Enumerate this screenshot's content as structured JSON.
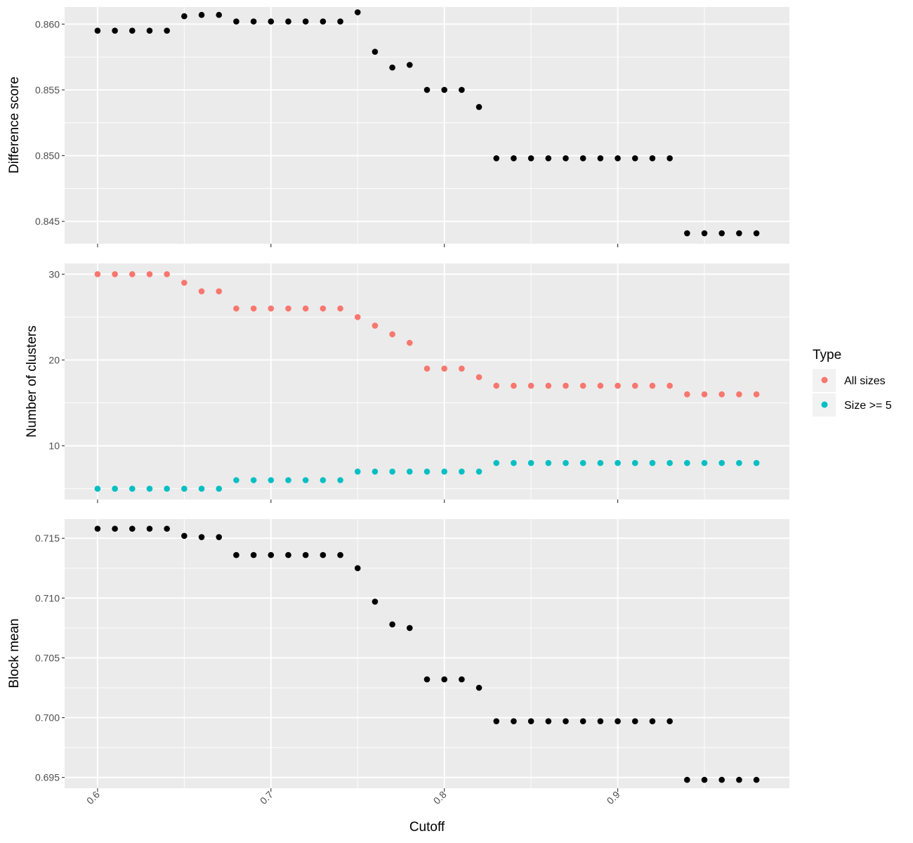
{
  "figure": {
    "xlabel": "Cutoff",
    "legend": {
      "title": "Type",
      "position": "right",
      "entries": [
        {
          "label": "All sizes",
          "color": "#F8766D"
        },
        {
          "label": "Size >= 5",
          "color": "#00BFC4"
        }
      ]
    }
  },
  "chart_data": [
    {
      "type": "scatter",
      "ylabel": "Difference score",
      "xlim": [
        0.581,
        0.999
      ],
      "ylim": [
        0.8433,
        0.8613
      ],
      "x_ticks": [
        0.6,
        0.7,
        0.8,
        0.9
      ],
      "x_tick_labels_shown": false,
      "y_ticks": [
        0.845,
        0.85,
        0.855,
        0.86
      ],
      "y_tick_labels": [
        "0.845",
        "0.850",
        "0.855",
        "0.860"
      ],
      "grid": true,
      "series": [
        {
          "color": "#000000",
          "x": [
            0.6,
            0.61,
            0.62,
            0.63,
            0.64,
            0.65,
            0.66,
            0.67,
            0.68,
            0.69,
            0.7,
            0.71,
            0.72,
            0.73,
            0.74,
            0.75,
            0.76,
            0.77,
            0.78,
            0.79,
            0.8,
            0.81,
            0.82,
            0.83,
            0.84,
            0.85,
            0.86,
            0.87,
            0.88,
            0.89,
            0.9,
            0.91,
            0.92,
            0.93,
            0.94,
            0.95,
            0.96,
            0.97,
            0.98
          ],
          "y": [
            0.8595,
            0.8595,
            0.8595,
            0.8595,
            0.8595,
            0.8606,
            0.8607,
            0.8607,
            0.8602,
            0.8602,
            0.8602,
            0.8602,
            0.8602,
            0.8602,
            0.8602,
            0.8609,
            0.8579,
            0.8567,
            0.8569,
            0.855,
            0.855,
            0.855,
            0.8537,
            0.8498,
            0.8498,
            0.8498,
            0.8498,
            0.8498,
            0.8498,
            0.8498,
            0.8498,
            0.8498,
            0.8498,
            0.8498,
            0.8441,
            0.8441,
            0.8441,
            0.8441,
            0.8441
          ]
        }
      ]
    },
    {
      "type": "scatter",
      "ylabel": "Number of clusters",
      "xlim": [
        0.581,
        0.999
      ],
      "ylim": [
        3.75,
        31.25
      ],
      "x_ticks": [
        0.6,
        0.7,
        0.8,
        0.9
      ],
      "x_tick_labels_shown": false,
      "y_ticks": [
        10,
        20,
        30
      ],
      "y_tick_labels": [
        "10",
        "20",
        "30"
      ],
      "grid": true,
      "series": [
        {
          "name": "All sizes",
          "color": "#F8766D",
          "x": [
            0.6,
            0.61,
            0.62,
            0.63,
            0.64,
            0.65,
            0.66,
            0.67,
            0.68,
            0.69,
            0.7,
            0.71,
            0.72,
            0.73,
            0.74,
            0.75,
            0.76,
            0.77,
            0.78,
            0.79,
            0.8,
            0.81,
            0.82,
            0.83,
            0.84,
            0.85,
            0.86,
            0.87,
            0.88,
            0.89,
            0.9,
            0.91,
            0.92,
            0.93,
            0.94,
            0.95,
            0.96,
            0.97,
            0.98
          ],
          "y": [
            30,
            30,
            30,
            30,
            30,
            29,
            28,
            28,
            26,
            26,
            26,
            26,
            26,
            26,
            26,
            25,
            24,
            23,
            22,
            19,
            19,
            19,
            18,
            17,
            17,
            17,
            17,
            17,
            17,
            17,
            17,
            17,
            17,
            17,
            16,
            16,
            16,
            16,
            16
          ]
        },
        {
          "name": "Size >= 5",
          "color": "#00BFC4",
          "x": [
            0.6,
            0.61,
            0.62,
            0.63,
            0.64,
            0.65,
            0.66,
            0.67,
            0.68,
            0.69,
            0.7,
            0.71,
            0.72,
            0.73,
            0.74,
            0.75,
            0.76,
            0.77,
            0.78,
            0.79,
            0.8,
            0.81,
            0.82,
            0.83,
            0.84,
            0.85,
            0.86,
            0.87,
            0.88,
            0.89,
            0.9,
            0.91,
            0.92,
            0.93,
            0.94,
            0.95,
            0.96,
            0.97,
            0.98
          ],
          "y": [
            5,
            5,
            5,
            5,
            5,
            5,
            5,
            5,
            6,
            6,
            6,
            6,
            6,
            6,
            6,
            7,
            7,
            7,
            7,
            7,
            7,
            7,
            7,
            8,
            8,
            8,
            8,
            8,
            8,
            8,
            8,
            8,
            8,
            8,
            8,
            8,
            8,
            8,
            8
          ]
        }
      ]
    },
    {
      "type": "scatter",
      "ylabel": "Block mean",
      "xlim": [
        0.581,
        0.999
      ],
      "ylim": [
        0.6941,
        0.7166
      ],
      "x_ticks": [
        0.6,
        0.7,
        0.8,
        0.9
      ],
      "x_tick_labels_shown": true,
      "x_tick_labels": [
        "0.6",
        "0.7",
        "0.8",
        "0.9"
      ],
      "y_ticks": [
        0.695,
        0.7,
        0.705,
        0.71,
        0.715
      ],
      "y_tick_labels": [
        "0.695",
        "0.700",
        "0.705",
        "0.710",
        "0.715"
      ],
      "grid": true,
      "series": [
        {
          "color": "#000000",
          "x": [
            0.6,
            0.61,
            0.62,
            0.63,
            0.64,
            0.65,
            0.66,
            0.67,
            0.68,
            0.69,
            0.7,
            0.71,
            0.72,
            0.73,
            0.74,
            0.75,
            0.76,
            0.77,
            0.78,
            0.79,
            0.8,
            0.81,
            0.82,
            0.83,
            0.84,
            0.85,
            0.86,
            0.87,
            0.88,
            0.89,
            0.9,
            0.91,
            0.92,
            0.93,
            0.94,
            0.95,
            0.96,
            0.97,
            0.98
          ],
          "y": [
            0.7158,
            0.7158,
            0.7158,
            0.7158,
            0.7158,
            0.7152,
            0.7151,
            0.7151,
            0.7136,
            0.7136,
            0.7136,
            0.7136,
            0.7136,
            0.7136,
            0.7136,
            0.7125,
            0.7097,
            0.7078,
            0.7075,
            0.7032,
            0.7032,
            0.7032,
            0.7025,
            0.6997,
            0.6997,
            0.6997,
            0.6997,
            0.6997,
            0.6997,
            0.6997,
            0.6997,
            0.6997,
            0.6997,
            0.6997,
            0.6948,
            0.6948,
            0.6948,
            0.6948,
            0.6948
          ]
        }
      ]
    }
  ]
}
